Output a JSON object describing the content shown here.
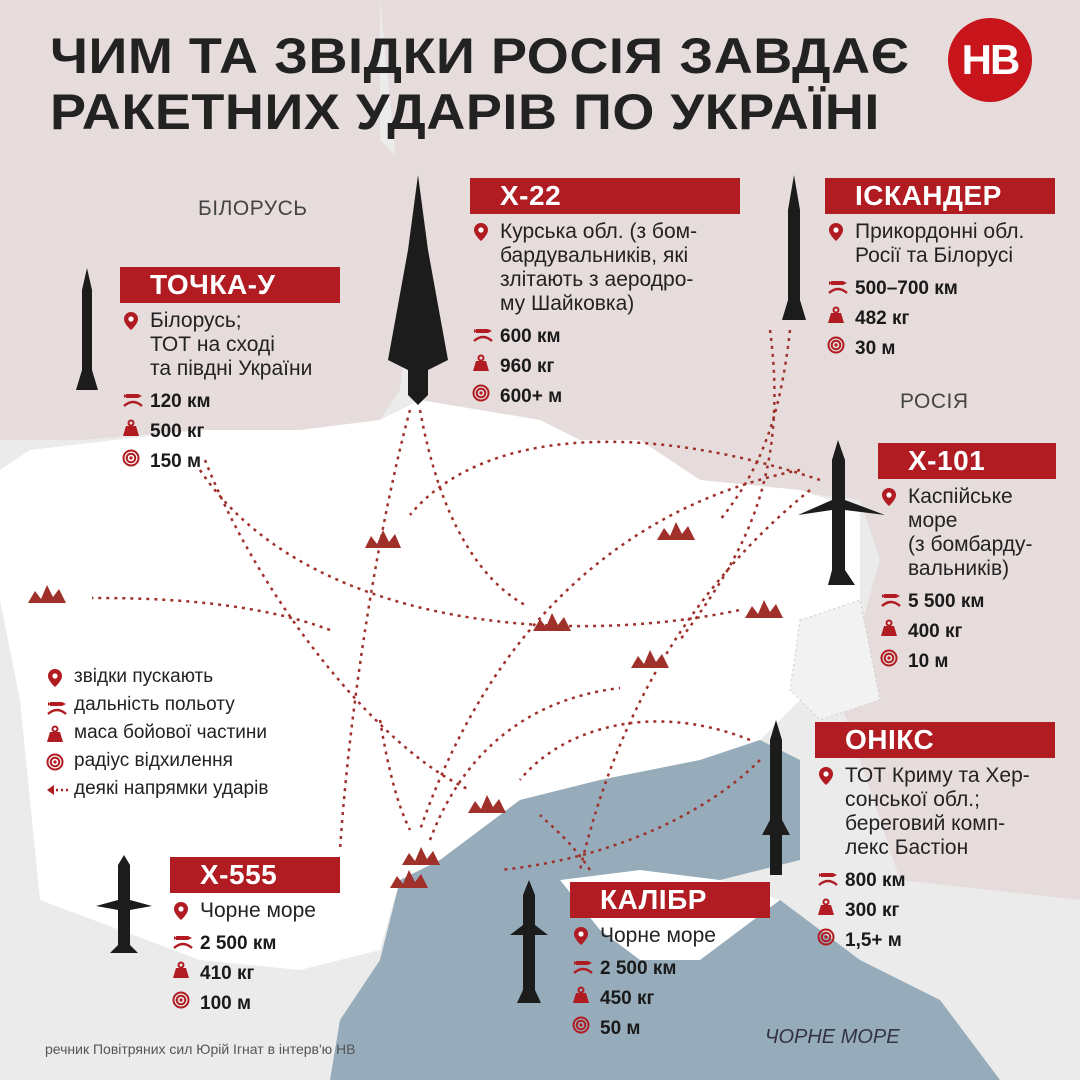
{
  "title": [
    "ЧИМ ТА ЗВІДКИ РОСІЯ ЗАВДАЄ",
    "РАКЕТНИХ УДАРІВ ПО УКРАЇНІ"
  ],
  "logo": "НВ",
  "colors": {
    "accent": "#b01c22",
    "sea": "#96acba",
    "ukraine": "#ffffff",
    "neighbors": "#e6dcdc",
    "arrows": "#a0302a"
  },
  "labels": {
    "belarus": "БІЛОРУСЬ",
    "russia": "РОСІЯ",
    "black_sea": "ЧОРНЕ МОРЕ"
  },
  "missiles": [
    {
      "name": "ТОЧКА-У",
      "origin": [
        "Білорусь;",
        "ТОТ на сході",
        "та півдні України"
      ],
      "range": "120 км",
      "mass": "500 кг",
      "cep": "150 м"
    },
    {
      "name": "Х-22",
      "origin": [
        "Курська обл. (з бом-",
        "бардувальників, які",
        "злітають з аеродро-",
        "му Шайковка)"
      ],
      "range": "600 км",
      "mass": "960 кг",
      "cep": "600+ м"
    },
    {
      "name": "ІСКАНДЕР",
      "origin": [
        "Прикордонні обл.",
        "Росії та Білорусі"
      ],
      "range": "500–700 км",
      "mass": "482 кг",
      "cep": "30 м"
    },
    {
      "name": "Х-101",
      "origin": [
        "Каспійське",
        "море",
        "(з бомбарду-",
        "вальників)"
      ],
      "range": "5 500 км",
      "mass": "400 кг",
      "cep": "10 м"
    },
    {
      "name": "ОНІКС",
      "origin": [
        "ТОТ Криму та Хер-",
        "сонської обл.;",
        "береговий комп-",
        "лекс Бастіон"
      ],
      "range": "800 км",
      "mass": "300 кг",
      "cep": "1,5+ м"
    },
    {
      "name": "Х-555",
      "origin": [
        "Чорне море"
      ],
      "range": "2 500 км",
      "mass": "410 кг",
      "cep": "100 м"
    },
    {
      "name": "КАЛІБР",
      "origin": [
        "Чорне море"
      ],
      "range": "2 500 км",
      "mass": "450 кг",
      "cep": "50 м"
    }
  ],
  "legend": [
    {
      "icon": "pin-icon",
      "label": "звідки пускають"
    },
    {
      "icon": "range-icon",
      "label": "дальність польоту"
    },
    {
      "icon": "weight-icon",
      "label": "маса бойової частини"
    },
    {
      "icon": "target-icon",
      "label": "радіус відхилення"
    },
    {
      "icon": "arrow-icon",
      "label": "деякі напрямки ударів"
    }
  ],
  "source": "речник Повітряних сил Юрій Ігнат в інтерв'ю НВ"
}
